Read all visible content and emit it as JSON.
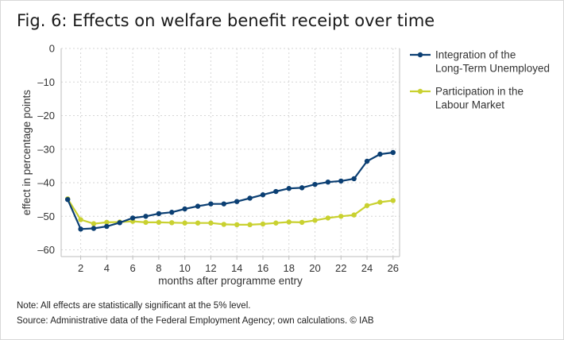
{
  "figure": {
    "title": "Fig. 6: Effects on welfare benefit receipt over time",
    "note": "Note: All effects are statistically significant at the 5% level.",
    "source": "Source: Administrative data of the Federal Employment Agency; own calculations.  © IAB"
  },
  "chart_data": {
    "type": "line",
    "xlabel": "months after programme entry",
    "ylabel": "effect in percentage points",
    "xlim": [
      0.5,
      26.5
    ],
    "ylim": [
      -62,
      0
    ],
    "x_ticks": [
      2,
      4,
      6,
      8,
      10,
      12,
      14,
      16,
      18,
      20,
      22,
      24,
      26
    ],
    "y_ticks": [
      0,
      -10,
      -20,
      -30,
      -40,
      -50,
      -60
    ],
    "y_tick_labels": [
      "0",
      "–10",
      "–20",
      "–30",
      "–40",
      "–50",
      "–60"
    ],
    "grid": true,
    "legend_position": "right",
    "x": [
      1,
      2,
      3,
      4,
      5,
      6,
      7,
      8,
      9,
      10,
      11,
      12,
      13,
      14,
      15,
      16,
      17,
      18,
      19,
      20,
      21,
      22,
      23,
      24,
      25,
      26
    ],
    "series": [
      {
        "name_lines": [
          "Integration of the",
          "Long-Term Unemployed"
        ],
        "color": "#0b3f73",
        "values": [
          -45.0,
          -53.8,
          -53.6,
          -53.0,
          -51.9,
          -50.5,
          -50.0,
          -49.2,
          -48.8,
          -47.8,
          -47.0,
          -46.3,
          -46.3,
          -45.6,
          -44.6,
          -43.6,
          -42.6,
          -41.7,
          -41.5,
          -40.5,
          -39.8,
          -39.5,
          -38.8,
          -33.6,
          -31.5,
          -31.0
        ]
      },
      {
        "name_lines": [
          "Participation in the",
          "Labour Market"
        ],
        "color": "#c9d130",
        "values": [
          -44.8,
          -51.0,
          -52.2,
          -51.8,
          -51.7,
          -51.5,
          -51.8,
          -51.8,
          -51.9,
          -52.0,
          -52.0,
          -52.0,
          -52.4,
          -52.5,
          -52.5,
          -52.3,
          -52.0,
          -51.7,
          -51.8,
          -51.2,
          -50.5,
          -50.0,
          -49.6,
          -46.8,
          -45.8,
          -45.3
        ]
      }
    ]
  }
}
